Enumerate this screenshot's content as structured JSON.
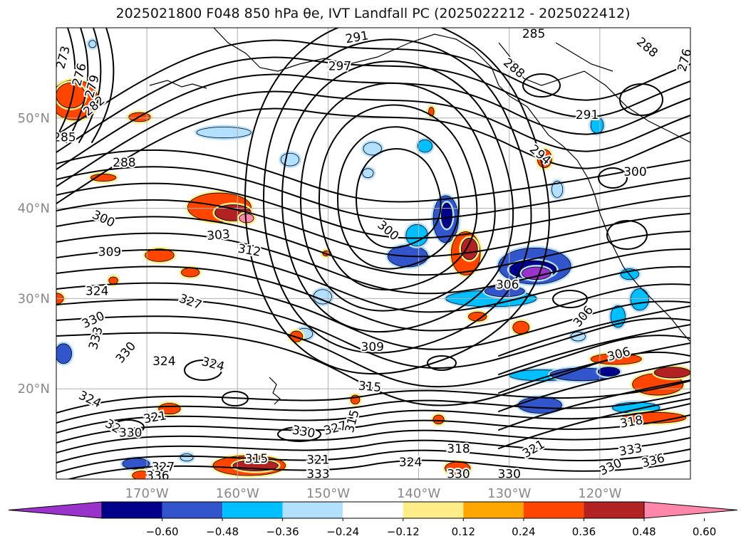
{
  "title": "2025021800 F048 850 hPa θe, IVT Landfall PC (2025022212 - 2025022412)",
  "chart_data": {
    "type": "map-contour",
    "extent": {
      "lon": [
        -180,
        -110
      ],
      "lat": [
        10,
        60
      ]
    },
    "lat_ticks": [
      {
        "value": 50,
        "label": "50°N"
      },
      {
        "value": 40,
        "label": "40°N"
      },
      {
        "value": 30,
        "label": "30°N"
      },
      {
        "value": 20,
        "label": "20°N"
      }
    ],
    "lon_ticks": [
      {
        "value": -170,
        "label": "170°W"
      },
      {
        "value": -160,
        "label": "160°W"
      },
      {
        "value": -150,
        "label": "150°W"
      },
      {
        "value": -140,
        "label": "140°W"
      },
      {
        "value": -130,
        "label": "130°W"
      },
      {
        "value": -120,
        "label": "120°W"
      }
    ],
    "grid": true,
    "theta_e_contours": [
      {
        "label": "273",
        "lon": -179.2,
        "lat": 56.7,
        "rot": -75
      },
      {
        "label": "276",
        "lon": -177.4,
        "lat": 54.8,
        "rot": -75
      },
      {
        "label": "279",
        "lon": -176.0,
        "lat": 53.5,
        "rot": -75
      },
      {
        "label": "282",
        "lon": -175.8,
        "lat": 51.3,
        "rot": -40
      },
      {
        "label": "285",
        "lon": -179.1,
        "lat": 47.8,
        "rot": 0
      },
      {
        "label": "288",
        "lon": -172.5,
        "lat": 45.0,
        "rot": 0
      },
      {
        "label": "291",
        "lon": -146.8,
        "lat": 58.9,
        "rot": -10
      },
      {
        "label": "297",
        "lon": -148.7,
        "lat": 55.7,
        "rot": 0
      },
      {
        "label": "300",
        "lon": -174.8,
        "lat": 38.8,
        "rot": 25
      },
      {
        "label": "303",
        "lon": -162.1,
        "lat": 37.0,
        "rot": -5
      },
      {
        "label": "312",
        "lon": -158.7,
        "lat": 35.3,
        "rot": 10
      },
      {
        "label": "309",
        "lon": -174.1,
        "lat": 35.1,
        "rot": 0
      },
      {
        "label": "300",
        "lon": -143.4,
        "lat": 37.5,
        "rot": 40
      },
      {
        "label": "324",
        "lon": -175.5,
        "lat": 30.8,
        "rot": 0
      },
      {
        "label": "327",
        "lon": -165.2,
        "lat": 29.6,
        "rot": 20
      },
      {
        "label": "330",
        "lon": -175.9,
        "lat": 27.6,
        "rot": -25
      },
      {
        "label": "333",
        "lon": -175.6,
        "lat": 25.6,
        "rot": -75
      },
      {
        "label": "330",
        "lon": -172.3,
        "lat": 24.0,
        "rot": -50
      },
      {
        "label": "324",
        "lon": -168.1,
        "lat": 23.0,
        "rot": 0
      },
      {
        "label": "324",
        "lon": -162.7,
        "lat": 22.7,
        "rot": 15
      },
      {
        "label": "309",
        "lon": -145.1,
        "lat": 24.6,
        "rot": 0
      },
      {
        "label": "315",
        "lon": -145.4,
        "lat": 20.2,
        "rot": 5
      },
      {
        "label": "306",
        "lon": -130.2,
        "lat": 31.5,
        "rot": 0
      },
      {
        "label": "294",
        "lon": -126.6,
        "lat": 45.9,
        "rot": 40
      },
      {
        "label": "288",
        "lon": -129.5,
        "lat": 55.5,
        "rot": 40
      },
      {
        "label": "291",
        "lon": -121.4,
        "lat": 50.3,
        "rot": 0
      },
      {
        "label": "288",
        "lon": -114.8,
        "lat": 57.8,
        "rot": 40
      },
      {
        "label": "285",
        "lon": -127.3,
        "lat": 59.3,
        "rot": 0
      },
      {
        "label": "306",
        "lon": -121.8,
        "lat": 28.0,
        "rot": -50
      },
      {
        "label": "306",
        "lon": -117.9,
        "lat": 23.8,
        "rot": -15
      },
      {
        "label": "324",
        "lon": -176.3,
        "lat": 18.8,
        "rot": 25
      },
      {
        "label": "321",
        "lon": -169.1,
        "lat": 16.8,
        "rot": -10
      },
      {
        "label": "324",
        "lon": -173.4,
        "lat": 15.6,
        "rot": 30
      },
      {
        "label": "330",
        "lon": -171.8,
        "lat": 15.1,
        "rot": 0
      },
      {
        "label": "327",
        "lon": -168.2,
        "lat": 11.3,
        "rot": 0
      },
      {
        "label": "336",
        "lon": -168.8,
        "lat": 10.3,
        "rot": 0
      },
      {
        "label": "315",
        "lon": -157.9,
        "lat": 12.2,
        "rot": 0
      },
      {
        "label": "330",
        "lon": -152.7,
        "lat": 15.2,
        "rot": 10
      },
      {
        "label": "327",
        "lon": -149.2,
        "lat": 15.6,
        "rot": -15
      },
      {
        "label": "315",
        "lon": -147.3,
        "lat": 16.4,
        "rot": -75
      },
      {
        "label": "321",
        "lon": -151.1,
        "lat": 12.1,
        "rot": 0
      },
      {
        "label": "333",
        "lon": -151.1,
        "lat": 10.5,
        "rot": 0
      },
      {
        "label": "324",
        "lon": -140.9,
        "lat": 11.8,
        "rot": 0
      },
      {
        "label": "318",
        "lon": -135.6,
        "lat": 13.3,
        "rot": 0
      },
      {
        "label": "330",
        "lon": -135.6,
        "lat": 10.5,
        "rot": 0
      },
      {
        "label": "330",
        "lon": -130.0,
        "lat": 10.5,
        "rot": 0
      },
      {
        "label": "321",
        "lon": -127.3,
        "lat": 13.3,
        "rot": -30
      },
      {
        "label": "330",
        "lon": -118.8,
        "lat": 11.3,
        "rot": -25
      },
      {
        "label": "333",
        "lon": -116.6,
        "lat": 13.2,
        "rot": -10
      },
      {
        "label": "336",
        "lon": -114.1,
        "lat": 12.0,
        "rot": -15
      },
      {
        "label": "318",
        "lon": -116.5,
        "lat": 16.3,
        "rot": -10
      },
      {
        "label": "300",
        "lon": -116.1,
        "lat": 44.0,
        "rot": 0
      },
      {
        "label": "276",
        "lon": -110.6,
        "lat": 56.4,
        "rot": -75
      }
    ],
    "pc_shading": [
      {
        "lon": -154.2,
        "lat": 45.4,
        "rx": 1.0,
        "ry": 0.7,
        "value": -0.24
      },
      {
        "lon": -145.1,
        "lat": 46.6,
        "rx": 1.0,
        "ry": 0.7,
        "value": -0.24
      },
      {
        "lon": -145.6,
        "lat": 43.9,
        "rx": 0.6,
        "ry": 0.5,
        "value": -0.24
      },
      {
        "lon": -139.3,
        "lat": 46.9,
        "rx": 0.8,
        "ry": 0.7,
        "value": -0.3
      },
      {
        "lon": -161.5,
        "lat": 48.4,
        "rx": 3.0,
        "ry": 0.6,
        "value": -0.24
      },
      {
        "lon": -152.6,
        "lat": 26.1,
        "rx": 0.9,
        "ry": 0.6,
        "value": -0.24
      },
      {
        "lon": -150.6,
        "lat": 30.2,
        "rx": 1.0,
        "ry": 0.8,
        "value": -0.24
      },
      {
        "lon": -141.2,
        "lat": 34.7,
        "rx": 2.2,
        "ry": 1.2,
        "value": -0.4
      },
      {
        "lon": -140.2,
        "lat": 37.0,
        "rx": 1.2,
        "ry": 1.2,
        "value": -0.3
      },
      {
        "lon": -137.0,
        "lat": 38.8,
        "rx": 1.4,
        "ry": 2.6,
        "value": -0.4
      },
      {
        "lon": -136.9,
        "lat": 39.2,
        "rx": 0.6,
        "ry": 1.4,
        "value": -0.55
      },
      {
        "lon": -127.2,
        "lat": 33.6,
        "rx": 4.0,
        "ry": 2.0,
        "value": -0.4
      },
      {
        "lon": -127.4,
        "lat": 33.2,
        "rx": 2.6,
        "ry": 1.0,
        "value": -0.56
      },
      {
        "lon": -127.0,
        "lat": 32.8,
        "rx": 1.6,
        "ry": 0.7,
        "value": -0.62
      },
      {
        "lon": -132.0,
        "lat": 30.0,
        "rx": 5.0,
        "ry": 0.9,
        "value": -0.3
      },
      {
        "lon": -130.5,
        "lat": 30.8,
        "rx": 2.2,
        "ry": 0.6,
        "value": -0.45
      },
      {
        "lon": -126.5,
        "lat": 21.5,
        "rx": 3.5,
        "ry": 0.6,
        "value": -0.3
      },
      {
        "lon": -122.0,
        "lat": 21.6,
        "rx": 3.5,
        "ry": 0.7,
        "value": -0.4
      },
      {
        "lon": -119.0,
        "lat": 21.9,
        "rx": 1.2,
        "ry": 0.5,
        "value": -0.6
      },
      {
        "lon": -126.6,
        "lat": 18.2,
        "rx": 2.4,
        "ry": 0.9,
        "value": -0.4
      },
      {
        "lon": -116.0,
        "lat": 17.9,
        "rx": 2.6,
        "ry": 0.6,
        "value": -0.36
      },
      {
        "lon": -118.0,
        "lat": 28.0,
        "rx": 0.8,
        "ry": 1.2,
        "value": -0.3
      },
      {
        "lon": -115.6,
        "lat": 29.9,
        "rx": 1.0,
        "ry": 1.2,
        "value": -0.3
      },
      {
        "lon": -116.7,
        "lat": 32.7,
        "rx": 1.0,
        "ry": 0.6,
        "value": -0.3
      },
      {
        "lon": -122.4,
        "lat": 25.8,
        "rx": 0.8,
        "ry": 0.5,
        "value": -0.24
      },
      {
        "lon": -120.3,
        "lat": 49.2,
        "rx": 0.7,
        "ry": 0.9,
        "value": -0.3
      },
      {
        "lon": -124.7,
        "lat": 42.1,
        "rx": 0.6,
        "ry": 0.9,
        "value": -0.24
      },
      {
        "lon": -179.2,
        "lat": 23.9,
        "rx": 0.9,
        "ry": 1.1,
        "value": -0.4
      },
      {
        "lon": -171.2,
        "lat": 11.7,
        "rx": 1.5,
        "ry": 0.6,
        "value": -0.4
      },
      {
        "lon": -165.6,
        "lat": 12.4,
        "rx": 0.7,
        "ry": 0.4,
        "value": -0.24
      },
      {
        "lon": -176.0,
        "lat": 58.2,
        "rx": 0.4,
        "ry": 0.4,
        "value": -0.24
      },
      {
        "lon": -178.0,
        "lat": 52.0,
        "rx": 2.6,
        "ry": 2.2,
        "value": 0.4
      },
      {
        "lon": -178.4,
        "lat": 52.5,
        "rx": 1.6,
        "ry": 1.4,
        "value": 0.36
      },
      {
        "lon": -170.8,
        "lat": 50.1,
        "rx": 1.2,
        "ry": 0.5,
        "value": 0.4
      },
      {
        "lon": -162.0,
        "lat": 40.1,
        "rx": 3.5,
        "ry": 1.6,
        "value": 0.4
      },
      {
        "lon": -160.5,
        "lat": 39.5,
        "rx": 2.0,
        "ry": 0.9,
        "value": 0.5
      },
      {
        "lon": -159.0,
        "lat": 38.9,
        "rx": 0.8,
        "ry": 0.5,
        "value": 0.62
      },
      {
        "lon": -168.6,
        "lat": 34.8,
        "rx": 1.6,
        "ry": 0.7,
        "value": 0.4
      },
      {
        "lon": -165.2,
        "lat": 32.9,
        "rx": 1.0,
        "ry": 0.5,
        "value": 0.4
      },
      {
        "lon": -174.8,
        "lat": 43.4,
        "rx": 1.4,
        "ry": 0.4,
        "value": 0.36
      },
      {
        "lon": -180.0,
        "lat": 30.0,
        "rx": 0.8,
        "ry": 0.6,
        "value": 0.4
      },
      {
        "lon": -134.8,
        "lat": 35.0,
        "rx": 1.6,
        "ry": 2.4,
        "value": 0.4
      },
      {
        "lon": -134.4,
        "lat": 35.5,
        "rx": 0.9,
        "ry": 1.2,
        "value": 0.5
      },
      {
        "lon": -133.5,
        "lat": 28.0,
        "rx": 1.0,
        "ry": 0.5,
        "value": 0.4
      },
      {
        "lon": -128.7,
        "lat": 26.8,
        "rx": 0.9,
        "ry": 0.7,
        "value": 0.4
      },
      {
        "lon": -118.2,
        "lat": 23.3,
        "rx": 2.8,
        "ry": 0.6,
        "value": 0.4
      },
      {
        "lon": -113.6,
        "lat": 20.5,
        "rx": 2.8,
        "ry": 1.2,
        "value": 0.4
      },
      {
        "lon": -112.0,
        "lat": 21.8,
        "rx": 2.0,
        "ry": 0.6,
        "value": 0.5
      },
      {
        "lon": -114.0,
        "lat": 16.8,
        "rx": 3.5,
        "ry": 0.6,
        "value": 0.4
      },
      {
        "lon": -126.1,
        "lat": 45.5,
        "rx": 0.8,
        "ry": 1.0,
        "value": 0.36
      },
      {
        "lon": -158.7,
        "lat": 11.5,
        "rx": 4.0,
        "ry": 1.1,
        "value": 0.4
      },
      {
        "lon": -158.0,
        "lat": 11.5,
        "rx": 2.5,
        "ry": 0.6,
        "value": 0.5
      },
      {
        "lon": -170.6,
        "lat": 10.4,
        "rx": 1.0,
        "ry": 0.5,
        "value": 0.4
      },
      {
        "lon": -135.7,
        "lat": 11.2,
        "rx": 1.4,
        "ry": 0.7,
        "value": 0.4
      },
      {
        "lon": -137.8,
        "lat": 16.6,
        "rx": 0.6,
        "ry": 0.5,
        "value": 0.4
      },
      {
        "lon": -153.5,
        "lat": 25.8,
        "rx": 0.7,
        "ry": 0.6,
        "value": 0.4
      },
      {
        "lon": -147.0,
        "lat": 18.8,
        "rx": 0.5,
        "ry": 0.5,
        "value": 0.4
      },
      {
        "lon": -167.5,
        "lat": 17.8,
        "rx": 1.2,
        "ry": 0.6,
        "value": 0.36
      },
      {
        "lon": -173.7,
        "lat": 32.0,
        "rx": 0.5,
        "ry": 0.4,
        "value": 0.36
      },
      {
        "lon": -150.2,
        "lat": 35.0,
        "rx": 0.4,
        "ry": 0.3,
        "value": 0.36
      },
      {
        "lon": -138.6,
        "lat": 50.7,
        "rx": 0.3,
        "ry": 0.5,
        "value": 0.36
      }
    ],
    "colorbar": {
      "ticks": [
        "−0.60",
        "−0.48",
        "−0.36",
        "−0.24",
        "−0.12",
        "0.12",
        "0.24",
        "0.36",
        "0.48",
        "0.60"
      ],
      "colors": [
        "#9933CC",
        "#00008B",
        "#3355CC",
        "#00BFFF",
        "#B3E0FF",
        "#FFFFFF",
        "#FFEE88",
        "#FFA500",
        "#FF4500",
        "#B22222",
        "#FF88AA"
      ],
      "extend": "both"
    }
  }
}
